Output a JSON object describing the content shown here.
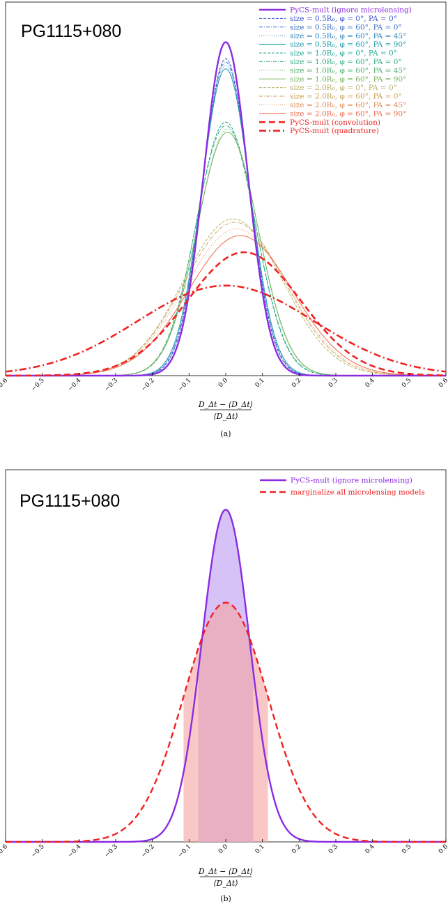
{
  "chart_data": [
    {
      "type": "line",
      "title": "PG1115+080",
      "caption": "(a)",
      "xlabel": {
        "numerator": "D_Δt − ⟨D_Δt⟩",
        "denominator": "⟨D_Δt⟩"
      },
      "ylabel": "",
      "xlim": [
        -0.6,
        0.6
      ],
      "ylim": [
        0,
        1.12
      ],
      "xticks": [
        "−0.6",
        "−0.5",
        "−0.4",
        "−0.3",
        "−0.2",
        "−0.1",
        "0.0",
        "0.1",
        "0.2",
        "0.3",
        "0.4",
        "0.5",
        "0.6"
      ],
      "yticks_shown": false,
      "grid": false,
      "legend_position": "top-right",
      "series": [
        {
          "name": "PyCS-mult (ignore microlensing)",
          "color": "#8a2be2",
          "dash": "solid",
          "width": 2.4,
          "mu": 0.0,
          "sigma": 0.06,
          "peak": 1.0
        },
        {
          "name": "size = 0.5R₀, φ = 0°, PA = 0°",
          "color": "#3a55d0",
          "dash": "4 2",
          "width": 1,
          "mu": 0.0,
          "sigma": 0.063,
          "peak": 0.95
        },
        {
          "name": "size = 0.5R₀, φ = 60°, PA = 0°",
          "color": "#3a70c8",
          "dash": "5 2 1 2",
          "width": 1,
          "mu": 0.0,
          "sigma": 0.064,
          "peak": 0.94
        },
        {
          "name": "size = 0.5R₀, φ = 60°, PA = 45°",
          "color": "#2f85c0",
          "dash": "1 2",
          "width": 1,
          "mu": 0.0,
          "sigma": 0.065,
          "peak": 0.93
        },
        {
          "name": "size = 0.5R₀, φ = 60°, PA = 90°",
          "color": "#1a9aa8",
          "dash": "solid",
          "width": 1,
          "mu": 0.0,
          "sigma": 0.066,
          "peak": 0.92
        },
        {
          "name": "size = 1.0R₀, φ = 0°, PA = 0°",
          "color": "#20a896",
          "dash": "4 2",
          "width": 1,
          "mu": 0.0,
          "sigma": 0.08,
          "peak": 0.76
        },
        {
          "name": "size = 1.0R₀, φ = 60°, PA = 0°",
          "color": "#30ad7e",
          "dash": "5 2 1 2",
          "width": 1,
          "mu": 0.0,
          "sigma": 0.081,
          "peak": 0.75
        },
        {
          "name": "size = 1.0R₀, φ = 60°, PA = 45°",
          "color": "#4db06a",
          "dash": "1 2",
          "width": 1,
          "mu": 0.005,
          "sigma": 0.082,
          "peak": 0.74
        },
        {
          "name": "size = 1.0R₀, φ = 60°, PA = 90°",
          "color": "#72b25a",
          "dash": "solid",
          "width": 1,
          "mu": 0.005,
          "sigma": 0.083,
          "peak": 0.73
        },
        {
          "name": "size = 2.0R₀, φ = 0°, PA = 0°",
          "color": "#b8b06a",
          "dash": "4 2",
          "width": 1,
          "mu": 0.02,
          "sigma": 0.135,
          "peak": 0.47
        },
        {
          "name": "size = 2.0R₀, φ = 60°, PA = 0°",
          "color": "#c8a050",
          "dash": "5 2 1 2",
          "width": 1,
          "mu": 0.025,
          "sigma": 0.138,
          "peak": 0.46
        },
        {
          "name": "size = 2.0R₀, φ = 60°, PA = 45°",
          "color": "#e08a55",
          "dash": "1 2",
          "width": 1,
          "mu": 0.03,
          "sigma": 0.14,
          "peak": 0.44
        },
        {
          "name": "size = 2.0R₀, φ = 60°, PA = 90°",
          "color": "#ec6a4a",
          "dash": "solid",
          "width": 1,
          "mu": 0.04,
          "sigma": 0.142,
          "peak": 0.42
        },
        {
          "name": "PyCS-mult (convolution)",
          "color": "#ee2222",
          "dash": "9 5",
          "width": 2.6,
          "mu": 0.05,
          "sigma": 0.155,
          "peak": 0.37
        },
        {
          "name": "PyCS-mult (quadrature)",
          "color": "#ee2222",
          "dash": "10 4 2 4",
          "width": 2.6,
          "mu": 0.0,
          "sigma": 0.24,
          "peak": 0.27
        }
      ]
    },
    {
      "type": "area",
      "title": "PG1115+080",
      "caption": "(b)",
      "xlabel": {
        "numerator": "D_Δt − ⟨D_Δt⟩",
        "denominator": "⟨D_Δt⟩"
      },
      "ylabel": "",
      "xlim": [
        -0.6,
        0.6
      ],
      "ylim": [
        0,
        1.12
      ],
      "xticks": [
        "−0.6",
        "−0.5",
        "−0.4",
        "−0.3",
        "−0.2",
        "−0.1",
        "0.0",
        "0.1",
        "0.2",
        "0.3",
        "0.4",
        "0.5",
        "0.6"
      ],
      "yticks_shown": false,
      "grid": false,
      "legend_position": "top-right",
      "series": [
        {
          "name": "PyCS-mult (ignore microlensing)",
          "color": "#8a2be2",
          "dash": "solid",
          "width": 2.4,
          "mu": 0.0,
          "sigma": 0.065,
          "peak": 1.0,
          "band": [
            -0.075,
            0.075
          ],
          "band_color": "#c9aef4"
        },
        {
          "name": "marginalize all microlensing models",
          "color": "#ee2222",
          "dash": "9 5",
          "width": 2.4,
          "mu": 0.0,
          "sigma": 0.115,
          "peak": 0.72,
          "band": [
            -0.115,
            0.115
          ],
          "band_color": "#f5a3a0"
        }
      ]
    }
  ]
}
